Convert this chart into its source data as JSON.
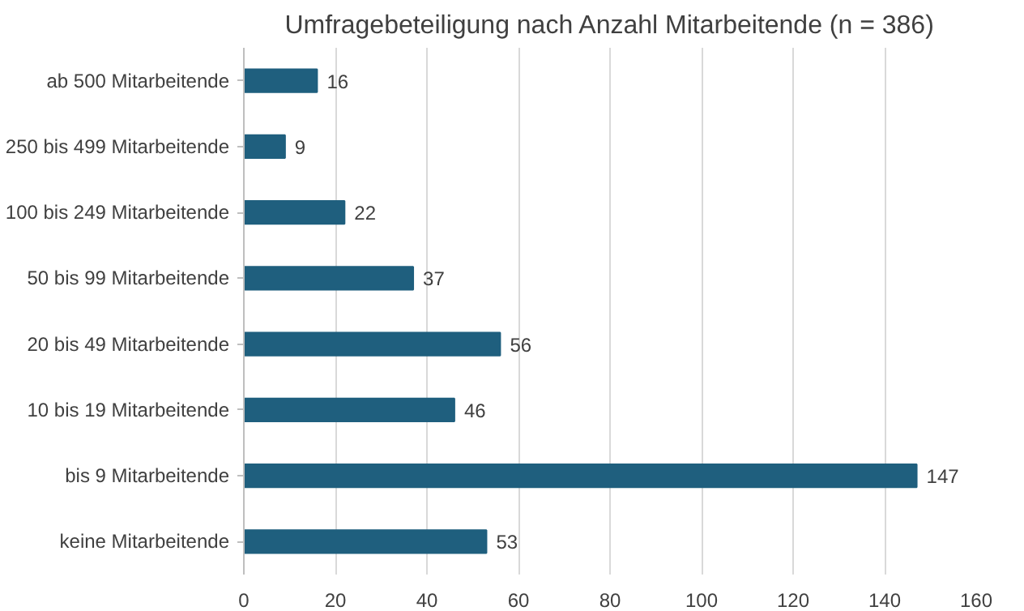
{
  "chart_data": {
    "type": "bar",
    "title": "Umfragebeteiligung nach Anzahl Mitarbeitende (n = 386)",
    "orientation": "horizontal",
    "categories": [
      "ab 500 Mitarbeitende",
      "250 bis 499 Mitarbeitende",
      "100 bis 249 Mitarbeitende",
      "50 bis 99 Mitarbeitende",
      "20 bis 49 Mitarbeitende",
      "10 bis 19 Mitarbeitende",
      "bis 9 Mitarbeitende",
      "keine Mitarbeitende"
    ],
    "values": [
      16,
      9,
      22,
      37,
      56,
      46,
      147,
      53
    ],
    "color": "#1f5f7e",
    "xlim": [
      0,
      160
    ],
    "xticks": [
      0,
      20,
      40,
      60,
      80,
      100,
      120,
      140,
      160
    ],
    "grid": "x",
    "data_labels": true
  }
}
